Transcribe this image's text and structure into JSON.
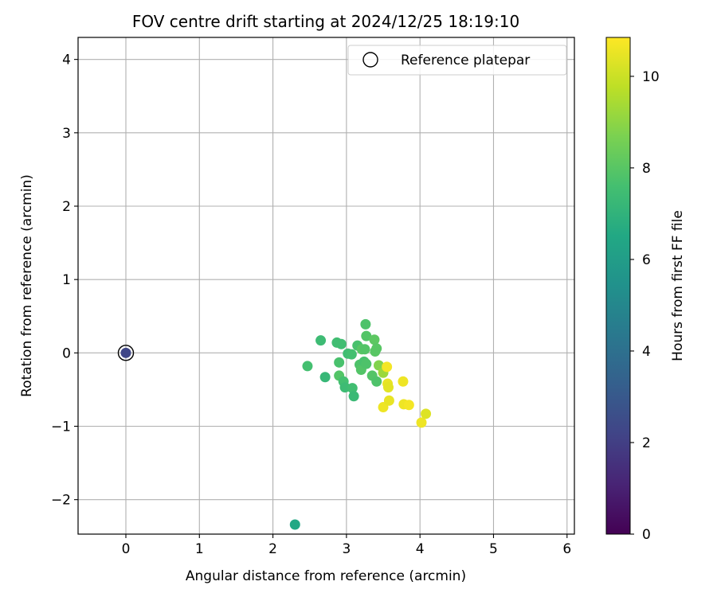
{
  "chart_data": {
    "type": "scatter",
    "title": "FOV centre drift starting at 2024/12/25 18:19:10",
    "xlabel": "Angular distance from reference (arcmin)",
    "ylabel": "Rotation from reference (arcmin)",
    "xlim": [
      -0.65,
      6.1
    ],
    "ylim": [
      -2.47,
      4.3
    ],
    "xticks": [
      0,
      1,
      2,
      3,
      4,
      5,
      6
    ],
    "yticks": [
      -2,
      -1,
      0,
      1,
      2,
      3,
      4
    ],
    "xtick_labels": [
      "0",
      "1",
      "2",
      "3",
      "4",
      "5",
      "6"
    ],
    "ytick_labels": [
      "−2",
      "−1",
      "0",
      "1",
      "2",
      "3",
      "4"
    ],
    "grid": true,
    "legend": {
      "position": "top-right",
      "entries": [
        "Reference platepar"
      ]
    },
    "colorbar": {
      "label": "Hours from first FF file",
      "range": [
        0,
        10.85
      ],
      "ticks": [
        0,
        2,
        4,
        6,
        8,
        10
      ],
      "colormap": "viridis"
    },
    "reference_point": {
      "x": 0.0,
      "y": 0.0
    },
    "points": [
      {
        "x": 0.0,
        "y": 0.0,
        "hours": 2.3
      },
      {
        "x": 2.3,
        "y": -2.34,
        "hours": 6.5
      },
      {
        "x": 2.47,
        "y": -0.18,
        "hours": 7.6
      },
      {
        "x": 2.65,
        "y": 0.17,
        "hours": 7.4
      },
      {
        "x": 2.71,
        "y": -0.33,
        "hours": 7.2
      },
      {
        "x": 2.87,
        "y": 0.14,
        "hours": 7.5
      },
      {
        "x": 2.93,
        "y": 0.12,
        "hours": 7.5
      },
      {
        "x": 2.9,
        "y": -0.13,
        "hours": 7.7
      },
      {
        "x": 2.9,
        "y": -0.31,
        "hours": 7.9
      },
      {
        "x": 2.96,
        "y": -0.39,
        "hours": 7.6
      },
      {
        "x": 2.98,
        "y": -0.47,
        "hours": 7.4
      },
      {
        "x": 3.02,
        "y": -0.01,
        "hours": 7.5
      },
      {
        "x": 3.07,
        "y": -0.02,
        "hours": 7.6
      },
      {
        "x": 3.08,
        "y": -0.48,
        "hours": 7.5
      },
      {
        "x": 3.1,
        "y": -0.59,
        "hours": 7.3
      },
      {
        "x": 3.15,
        "y": 0.1,
        "hours": 7.7
      },
      {
        "x": 3.18,
        "y": -0.16,
        "hours": 7.8
      },
      {
        "x": 3.2,
        "y": -0.23,
        "hours": 7.9
      },
      {
        "x": 3.21,
        "y": 0.05,
        "hours": 8.0
      },
      {
        "x": 3.24,
        "y": -0.12,
        "hours": 7.7
      },
      {
        "x": 3.25,
        "y": 0.05,
        "hours": 7.9
      },
      {
        "x": 3.26,
        "y": 0.39,
        "hours": 7.8
      },
      {
        "x": 3.27,
        "y": 0.23,
        "hours": 7.9
      },
      {
        "x": 3.27,
        "y": -0.15,
        "hours": 7.8
      },
      {
        "x": 3.35,
        "y": -0.31,
        "hours": 7.9
      },
      {
        "x": 3.38,
        "y": 0.18,
        "hours": 8.1
      },
      {
        "x": 3.39,
        "y": 0.02,
        "hours": 8.0
      },
      {
        "x": 3.41,
        "y": 0.06,
        "hours": 8.0
      },
      {
        "x": 3.41,
        "y": -0.39,
        "hours": 7.8
      },
      {
        "x": 3.44,
        "y": -0.17,
        "hours": 8.8
      },
      {
        "x": 3.5,
        "y": -0.27,
        "hours": 9.2
      },
      {
        "x": 3.5,
        "y": -0.74,
        "hours": 10.6
      },
      {
        "x": 3.55,
        "y": -0.19,
        "hours": 10.7
      },
      {
        "x": 3.56,
        "y": -0.42,
        "hours": 10.5
      },
      {
        "x": 3.57,
        "y": -0.47,
        "hours": 10.4
      },
      {
        "x": 3.58,
        "y": -0.65,
        "hours": 10.5
      },
      {
        "x": 3.77,
        "y": -0.39,
        "hours": 10.6
      },
      {
        "x": 3.78,
        "y": -0.7,
        "hours": 10.6
      },
      {
        "x": 3.85,
        "y": -0.71,
        "hours": 10.7
      },
      {
        "x": 4.02,
        "y": -0.95,
        "hours": 10.6
      },
      {
        "x": 4.08,
        "y": -0.83,
        "hours": 10.3
      }
    ]
  }
}
